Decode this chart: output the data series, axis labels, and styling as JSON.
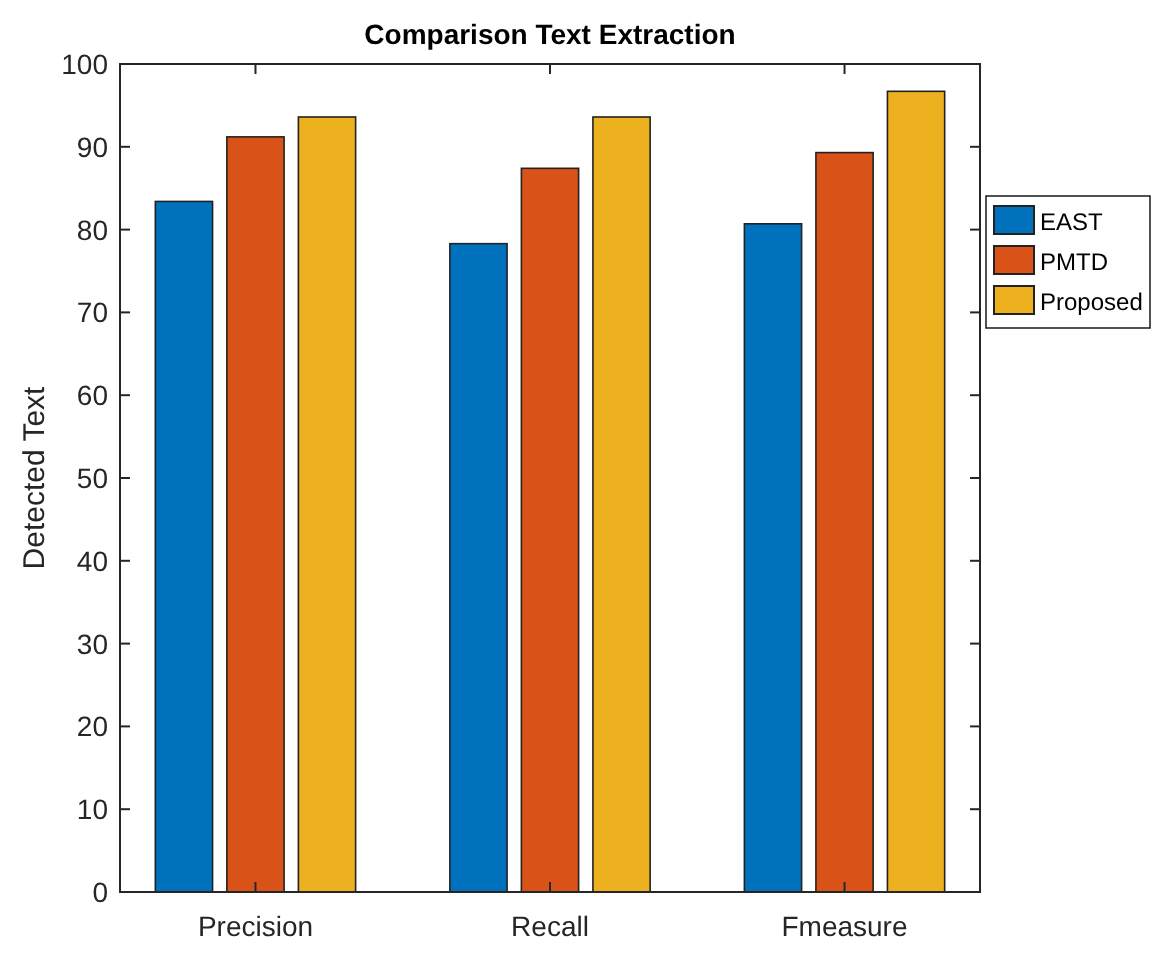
{
  "chart_data": {
    "type": "bar",
    "title": "Comparison Text Extraction",
    "ylabel": "Detected Text",
    "categories": [
      "Precision",
      "Recall",
      "Fmeasure"
    ],
    "series": [
      {
        "name": "EAST",
        "color": "#0072bd",
        "values": [
          83.4,
          78.3,
          80.7
        ]
      },
      {
        "name": "PMTD",
        "color": "#d95319",
        "values": [
          91.2,
          87.4,
          89.3
        ]
      },
      {
        "name": "Proposed",
        "color": "#edb120",
        "values": [
          93.6,
          93.6,
          96.7
        ]
      }
    ],
    "ylim": [
      0,
      100
    ],
    "yticks": [
      0,
      10,
      20,
      30,
      40,
      50,
      60,
      70,
      80,
      90,
      100
    ],
    "grid": false,
    "legend": "right"
  }
}
